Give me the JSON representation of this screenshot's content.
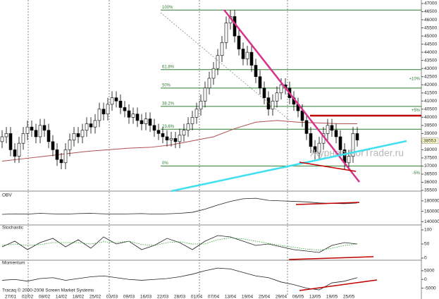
{
  "chart_data": [
    {
      "type": "candlestick",
      "categories": [
        null,
        null,
        "27/01",
        null,
        null,
        null,
        "02/02",
        null,
        null,
        null,
        "08/02",
        null,
        null,
        null,
        "14/02",
        null,
        null,
        null,
        "18/02",
        null,
        null,
        null,
        "25/02",
        null,
        null,
        null,
        "03/03",
        null,
        null,
        null,
        "09/03",
        null,
        null,
        null,
        "16/03",
        null,
        null,
        null,
        "22/03",
        null,
        null,
        null,
        "28/03",
        null,
        null,
        null,
        "01/04",
        null,
        null,
        null,
        "07/04",
        null,
        null,
        null,
        "13/04",
        null,
        null,
        null,
        "19/04",
        null,
        null,
        null,
        "25/04",
        null,
        null,
        null,
        "29/04",
        null,
        null,
        null,
        "06/05",
        null,
        null,
        null,
        "13/05",
        null,
        null,
        null,
        "19/05",
        null,
        null,
        null,
        "25/05",
        null,
        null
      ],
      "open": [
        38500,
        38800,
        39000,
        38000,
        37600,
        38400,
        39000,
        39400,
        39200,
        38800,
        39500,
        39200,
        38500,
        38000,
        37400,
        37200,
        38000,
        38600,
        39000,
        38800,
        39200,
        39600,
        39400,
        39800,
        40500,
        40200,
        40800,
        41200,
        41000,
        40600,
        40400,
        40000,
        40200,
        39800,
        39600,
        39900,
        39500,
        39200,
        39000,
        38800,
        38600,
        38700,
        38500,
        38900,
        39200,
        39600,
        40000,
        40500,
        41000,
        41800,
        42400,
        43000,
        43800,
        44600,
        45800,
        46200,
        45000,
        44200,
        43600,
        44000,
        43200,
        42500,
        41800,
        41200,
        40500,
        41000,
        41500,
        42000,
        41800,
        41200,
        40800,
        40400,
        39800,
        39000,
        38200,
        37800,
        38400,
        39000,
        39500,
        39200,
        38800,
        38000,
        37200,
        37600,
        39000
      ],
      "high": [
        39200,
        39400,
        39400,
        38400,
        38800,
        39400,
        39800,
        39800,
        39600,
        39900,
        39900,
        39600,
        38900,
        38400,
        37800,
        38400,
        39000,
        39400,
        39400,
        39600,
        40000,
        40000,
        40200,
        40900,
        40900,
        41200,
        41600,
        41600,
        41400,
        41000,
        40800,
        40600,
        40600,
        40200,
        40300,
        40300,
        39900,
        39600,
        39400,
        39200,
        39100,
        39100,
        39300,
        39600,
        40000,
        40400,
        40900,
        41400,
        42200,
        42800,
        43400,
        44200,
        45000,
        46200,
        46600,
        46600,
        45400,
        44600,
        44400,
        44400,
        43600,
        42900,
        42200,
        41600,
        41400,
        41900,
        42400,
        42400,
        42200,
        41600,
        41200,
        40800,
        40200,
        39400,
        38600,
        38800,
        39400,
        39900,
        39900,
        39600,
        39200,
        38400,
        38000,
        39400,
        39400
      ],
      "low": [
        38100,
        38400,
        37600,
        37200,
        37200,
        38000,
        38600,
        38800,
        38400,
        38400,
        38800,
        38100,
        37600,
        37000,
        36800,
        36800,
        37600,
        38200,
        38400,
        38400,
        38800,
        39000,
        39000,
        39400,
        39800,
        39800,
        40400,
        40600,
        40200,
        40000,
        39600,
        39600,
        39400,
        39200,
        39200,
        39100,
        38800,
        38600,
        38400,
        38200,
        38200,
        38100,
        38100,
        38500,
        38800,
        39200,
        39600,
        40100,
        40600,
        41400,
        42000,
        42600,
        43400,
        44200,
        45400,
        44600,
        43800,
        43200,
        43200,
        42800,
        42100,
        41400,
        40800,
        40100,
        40100,
        40600,
        41100,
        41400,
        40800,
        40400,
        40000,
        39400,
        38600,
        37800,
        37400,
        37400,
        38000,
        38600,
        38800,
        38400,
        37600,
        36800,
        36800,
        37200,
        38200
      ],
      "close": [
        38800,
        39000,
        38000,
        37600,
        38400,
        39000,
        39400,
        39200,
        38800,
        39500,
        39200,
        38500,
        38000,
        37400,
        37200,
        38000,
        38600,
        39000,
        38800,
        39200,
        39600,
        39400,
        39800,
        40500,
        40200,
        40800,
        41200,
        41000,
        40600,
        40400,
        40000,
        40200,
        39800,
        39600,
        39900,
        39500,
        39200,
        39000,
        38800,
        38600,
        38700,
        38500,
        38900,
        39200,
        39600,
        40000,
        40500,
        41000,
        41800,
        42400,
        43000,
        43800,
        44600,
        45800,
        46200,
        45000,
        44200,
        43600,
        44000,
        43200,
        42500,
        41800,
        41200,
        40500,
        41000,
        41500,
        42000,
        41800,
        41200,
        40800,
        40400,
        39800,
        39000,
        38200,
        37800,
        38400,
        39000,
        39500,
        39200,
        38800,
        38000,
        37200,
        37600,
        39000,
        38600
      ],
      "ylim": [
        35500,
        47000
      ],
      "yticks": [
        47000,
        46500,
        46000,
        45500,
        45000,
        44500,
        44000,
        43500,
        43000,
        42500,
        42000,
        41500,
        41000,
        40500,
        40000,
        39500,
        39000,
        38500,
        38000,
        37500,
        37000,
        36500,
        36000,
        35500
      ],
      "moving_average": {
        "x": [
          0,
          5,
          10,
          15,
          20,
          25,
          30,
          35,
          40,
          45,
          50,
          55,
          60,
          65,
          70,
          75,
          80,
          84
        ],
        "values": [
          37300,
          37450,
          37600,
          37750,
          37900,
          38000,
          38100,
          38150,
          38300,
          38550,
          38800,
          39300,
          39700,
          39800,
          39700,
          39650,
          39600,
          39600
        ],
        "color": "#b05050"
      },
      "fib_range": [
        37000,
        46600
      ],
      "fib_levels": [
        {
          "value": 100,
          "label": "100%"
        },
        {
          "value": 61.8,
          "label": "61.8%"
        },
        {
          "value": 50,
          "label": "50%"
        },
        {
          "value": 38.2,
          "label": "38.2%"
        },
        {
          "value": 23.6,
          "label": "23.6%"
        },
        {
          "value": 0,
          "label": "0%"
        }
      ],
      "fib_color": "#2e7d32",
      "pct_base": 38500,
      "pct_marks": [
        {
          "value": 10,
          "label": "+10%"
        },
        {
          "value": 5,
          "label": "+5%"
        },
        {
          "value": -5,
          "label": "-5%"
        }
      ],
      "last_price": 38553,
      "watermark": "Журнал-ForTrader.ru"
    },
    {
      "type": "line",
      "title": "OBV",
      "x": [
        0,
        3,
        6,
        9,
        12,
        15,
        18,
        21,
        24,
        27,
        30,
        33,
        36,
        39,
        42,
        45,
        48,
        51,
        54,
        57,
        60,
        63,
        66,
        69,
        72,
        75,
        78,
        81,
        84
      ],
      "xlim": [
        0,
        84
      ],
      "series": [
        {
          "color": "#222222",
          "values": [
            1540000,
            1550000,
            1545000,
            1560000,
            1550000,
            1545000,
            1555000,
            1560000,
            1550000,
            1545000,
            1550000,
            1555000,
            1545000,
            1550000,
            1560000,
            1580000,
            1640000,
            1720000,
            1790000,
            1840000,
            1850000,
            1810000,
            1800000,
            1790000,
            1780000,
            1760000,
            1750000,
            1745000,
            1760000
          ]
        }
      ],
      "ylim": [
        1350000,
        1920000
      ],
      "yticks": [
        1800000,
        1600000,
        1400000
      ]
    },
    {
      "type": "line",
      "title": "Stochastic",
      "x": [
        0,
        3,
        6,
        9,
        12,
        15,
        18,
        21,
        24,
        27,
        30,
        33,
        36,
        39,
        42,
        45,
        48,
        51,
        54,
        57,
        60,
        63,
        66,
        69,
        72,
        75,
        78,
        81,
        84
      ],
      "xlim": [
        0,
        84
      ],
      "series": [
        {
          "color": "#222222",
          "values": [
            40,
            60,
            30,
            55,
            70,
            40,
            65,
            35,
            75,
            50,
            60,
            30,
            45,
            70,
            55,
            30,
            60,
            80,
            75,
            60,
            45,
            50,
            40,
            30,
            25,
            20,
            45,
            55,
            50
          ]
        },
        {
          "color": "#2ea02e",
          "dotted": true,
          "values": [
            45,
            50,
            45,
            48,
            55,
            55,
            55,
            50,
            58,
            55,
            60,
            48,
            45,
            55,
            58,
            50,
            50,
            65,
            72,
            68,
            60,
            52,
            45,
            38,
            32,
            28,
            35,
            45,
            50
          ]
        }
      ],
      "ylim": [
        -5,
        110
      ],
      "yticks": [
        100,
        50,
        0
      ]
    },
    {
      "type": "line",
      "title": "Momentum",
      "x": [
        0,
        3,
        6,
        9,
        12,
        15,
        18,
        21,
        24,
        27,
        30,
        33,
        36,
        39,
        42,
        45,
        48,
        51,
        54,
        57,
        60,
        63,
        66,
        69,
        72,
        75,
        78,
        81,
        84
      ],
      "xlim": [
        0,
        84
      ],
      "series": [
        {
          "color": "#222222",
          "values": [
            -500,
            0,
            -1000,
            500,
            1000,
            -500,
            500,
            1500,
            2000,
            1000,
            0,
            -500,
            0,
            500,
            1500,
            3000,
            5000,
            6500,
            6000,
            4000,
            2000,
            1000,
            -1500,
            -3000,
            -5000,
            -6000,
            -2000,
            -1000,
            1000
          ]
        }
      ],
      "ylim": [
        -8000,
        9800
      ],
      "yticks": [
        5000,
        0,
        -5000
      ]
    }
  ],
  "footer": "Tracaq © 2000-2008 Screen Market Systems"
}
